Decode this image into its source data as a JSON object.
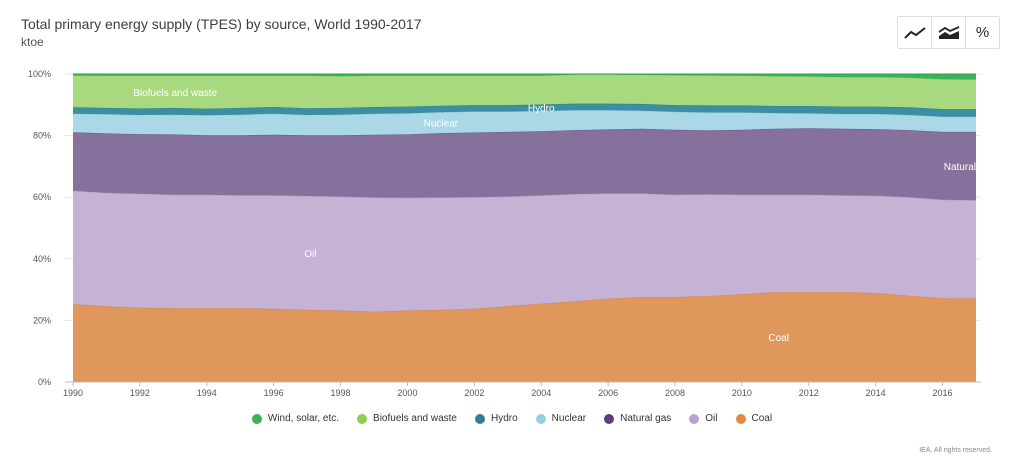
{
  "header": {
    "title": "Total primary energy supply (TPES) by source, World 1990-2017",
    "subtitle": "ktoe"
  },
  "toolbar": [
    {
      "name": "line-chart-button",
      "icon": "line-chart-icon"
    },
    {
      "name": "area-chart-button",
      "icon": "area-chart-icon"
    },
    {
      "name": "percent-button",
      "label": "%"
    }
  ],
  "credit": "IEA. All rights reserved.",
  "chart_data": {
    "type": "area",
    "stacked": "percent",
    "title": "Total primary energy supply (TPES) by source, World 1990-2017",
    "unit": "ktoe",
    "x": [
      1990,
      1991,
      1992,
      1993,
      1994,
      1995,
      1996,
      1997,
      1998,
      1999,
      2000,
      2001,
      2002,
      2003,
      2004,
      2005,
      2006,
      2007,
      2008,
      2009,
      2010,
      2011,
      2012,
      2013,
      2014,
      2015,
      2016,
      2017
    ],
    "x_ticks": [
      "1990",
      "1992",
      "1994",
      "1996",
      "1998",
      "2000",
      "2002",
      "2004",
      "2006",
      "2008",
      "2010",
      "2012",
      "2014",
      "2016"
    ],
    "y_ticks": [
      "0%",
      "20%",
      "40%",
      "60%",
      "80%",
      "100%"
    ],
    "ylim": [
      0,
      100
    ],
    "grid": "horizontal",
    "legend_position": "bottom",
    "series": [
      {
        "name": "Coal",
        "color": "#e0975c",
        "label": "Coal",
        "values": [
          25.3,
          24.6,
          24.1,
          24.0,
          24.0,
          24.0,
          23.8,
          23.4,
          23.2,
          22.8,
          23.2,
          23.4,
          23.8,
          24.6,
          25.4,
          26.2,
          27.0,
          27.6,
          27.6,
          27.9,
          28.5,
          29.2,
          29.2,
          29.2,
          28.9,
          28.0,
          27.2,
          27.1
        ]
      },
      {
        "name": "Oil",
        "color": "#c4b3d4",
        "label": "Oil",
        "values": [
          36.8,
          36.8,
          37.0,
          36.8,
          36.8,
          36.6,
          36.8,
          37.0,
          37.0,
          37.1,
          36.6,
          36.5,
          36.2,
          35.6,
          35.2,
          34.8,
          34.2,
          33.6,
          33.2,
          33.0,
          32.3,
          31.6,
          31.6,
          31.4,
          31.6,
          32.0,
          32.0,
          31.9
        ]
      },
      {
        "name": "Natural gas",
        "color": "#85719b",
        "label": "Natural gas",
        "values": [
          19.0,
          19.3,
          19.4,
          19.6,
          19.3,
          19.5,
          19.7,
          19.7,
          19.9,
          20.4,
          20.6,
          20.9,
          21.0,
          21.0,
          20.8,
          20.8,
          20.8,
          21.0,
          21.1,
          20.8,
          21.1,
          21.4,
          21.6,
          21.6,
          21.6,
          21.8,
          22.0,
          22.2
        ]
      },
      {
        "name": "Nuclear",
        "color": "#aad8e6",
        "label": "Nuclear",
        "values": [
          6.0,
          6.2,
          6.2,
          6.4,
          6.5,
          6.7,
          6.8,
          6.6,
          6.7,
          6.8,
          6.8,
          6.8,
          6.8,
          6.6,
          6.6,
          6.4,
          6.2,
          5.9,
          5.8,
          5.8,
          5.6,
          5.1,
          4.8,
          4.8,
          4.9,
          4.9,
          4.9,
          4.9
        ]
      },
      {
        "name": "Hydro",
        "color": "#3c8fa2",
        "label": "Hydro",
        "values": [
          2.1,
          2.1,
          2.1,
          2.2,
          2.1,
          2.2,
          2.2,
          2.2,
          2.2,
          2.2,
          2.2,
          2.1,
          2.1,
          2.1,
          2.1,
          2.2,
          2.2,
          2.2,
          2.2,
          2.3,
          2.3,
          2.3,
          2.4,
          2.4,
          2.4,
          2.5,
          2.5,
          2.5
        ]
      },
      {
        "name": "Biofuels and waste",
        "color": "#a8d97e",
        "label": "Biofuels and waste",
        "values": [
          10.3,
          10.4,
          10.6,
          10.4,
          10.7,
          10.4,
          10.1,
          10.5,
          10.3,
          10.1,
          10.0,
          9.7,
          9.5,
          9.5,
          9.3,
          9.4,
          9.4,
          9.4,
          9.7,
          9.7,
          9.6,
          9.7,
          9.6,
          9.6,
          9.6,
          9.6,
          9.7,
          9.6
        ]
      },
      {
        "name": "Wind, solar, etc.",
        "color": "#3bb15a",
        "label": "",
        "values": [
          0.5,
          0.6,
          0.6,
          0.6,
          0.6,
          0.6,
          0.6,
          0.6,
          0.7,
          0.6,
          0.6,
          0.6,
          0.6,
          0.6,
          0.6,
          0.2,
          0.2,
          0.3,
          0.4,
          0.5,
          0.6,
          0.7,
          0.8,
          1.0,
          1.0,
          1.2,
          1.7,
          1.8
        ]
      }
    ]
  }
}
